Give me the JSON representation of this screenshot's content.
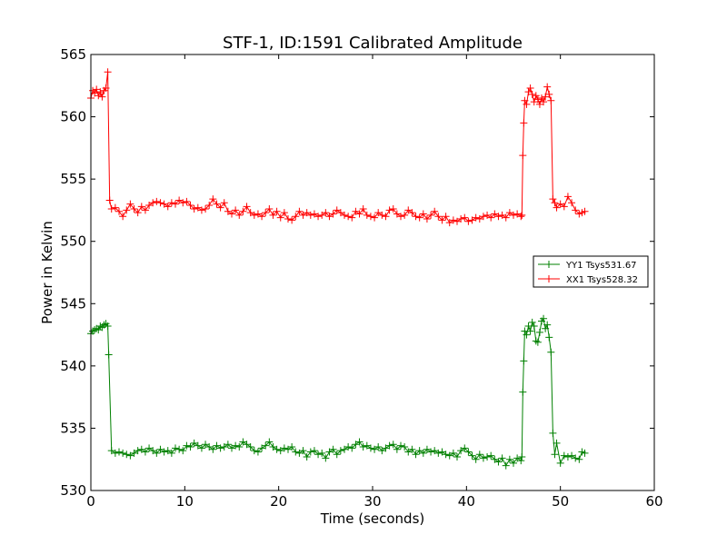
{
  "chart_data": {
    "type": "line",
    "title": "STF-1, ID:1591 Calibrated Amplitude",
    "xlabel": "Time (seconds)",
    "ylabel": "Power in Kelvin",
    "xlim": [
      0,
      60
    ],
    "ylim": [
      530,
      565
    ],
    "xticks": [
      0,
      10,
      20,
      30,
      40,
      50,
      60
    ],
    "yticks": [
      530,
      535,
      540,
      545,
      550,
      555,
      560,
      565
    ],
    "xtick_labels": [
      "0",
      "10",
      "20",
      "30",
      "40",
      "50",
      "60"
    ],
    "ytick_labels": [
      "530",
      "535",
      "540",
      "545",
      "550",
      "555",
      "560",
      "565"
    ],
    "grid": false,
    "legend_position": "center-right",
    "marker": "+",
    "series": [
      {
        "name": "YY1 Tsys531.67",
        "color": "#008000",
        "x": [
          0.0,
          0.2,
          0.4,
          0.6,
          0.8,
          1.0,
          1.2,
          1.4,
          1.6,
          1.8,
          1.9,
          2.2,
          2.6,
          3.0,
          3.4,
          3.8,
          4.2,
          4.6,
          5.0,
          5.4,
          5.8,
          6.2,
          6.6,
          7.0,
          7.4,
          7.8,
          8.2,
          8.6,
          9.0,
          9.4,
          9.8,
          10.2,
          10.6,
          11.0,
          11.4,
          11.8,
          12.2,
          12.6,
          13.0,
          13.4,
          13.8,
          14.2,
          14.6,
          15.0,
          15.4,
          15.8,
          16.2,
          16.6,
          17.0,
          17.4,
          17.8,
          18.2,
          18.6,
          19.0,
          19.4,
          19.8,
          20.2,
          20.6,
          21.0,
          21.4,
          21.8,
          22.2,
          22.6,
          23.0,
          23.4,
          23.8,
          24.2,
          24.6,
          25.0,
          25.4,
          25.8,
          26.2,
          26.6,
          27.0,
          27.4,
          27.8,
          28.2,
          28.6,
          29.0,
          29.4,
          29.8,
          30.2,
          30.6,
          31.0,
          31.4,
          31.8,
          32.2,
          32.6,
          33.0,
          33.4,
          33.8,
          34.2,
          34.6,
          35.0,
          35.4,
          35.8,
          36.2,
          36.6,
          37.0,
          37.4,
          37.8,
          38.2,
          38.6,
          39.0,
          39.4,
          39.8,
          40.2,
          40.6,
          41.0,
          41.4,
          41.8,
          42.2,
          42.6,
          43.0,
          43.4,
          43.8,
          44.2,
          44.6,
          45.0,
          45.4,
          45.8,
          45.9,
          46.0,
          46.1,
          46.2,
          46.4,
          46.6,
          46.8,
          47.0,
          47.2,
          47.4,
          47.6,
          47.8,
          48.0,
          48.2,
          48.4,
          48.6,
          48.8,
          49.0,
          49.2,
          49.4,
          49.6,
          50.0,
          50.4,
          50.8,
          51.2,
          51.6,
          52.0,
          52.3,
          52.6
        ],
        "values": [
          542.6,
          542.8,
          542.9,
          543.0,
          542.9,
          543.2,
          543.1,
          543.3,
          543.4,
          543.2,
          540.9,
          533.2,
          533.0,
          533.1,
          533.0,
          532.9,
          532.8,
          533.0,
          533.2,
          533.3,
          533.1,
          533.4,
          533.2,
          533.0,
          533.3,
          533.1,
          533.2,
          533.0,
          533.4,
          533.3,
          533.2,
          533.6,
          533.5,
          533.8,
          533.6,
          533.4,
          533.7,
          533.5,
          533.3,
          533.6,
          533.4,
          533.5,
          533.7,
          533.4,
          533.6,
          533.5,
          533.9,
          533.7,
          533.5,
          533.2,
          533.1,
          533.4,
          533.6,
          533.9,
          533.5,
          533.3,
          533.2,
          533.4,
          533.3,
          533.5,
          533.1,
          533.0,
          533.2,
          532.7,
          533.1,
          533.2,
          532.9,
          533.0,
          532.6,
          533.1,
          533.3,
          532.9,
          533.2,
          533.3,
          533.5,
          533.4,
          533.7,
          533.9,
          533.5,
          533.6,
          533.4,
          533.3,
          533.5,
          533.2,
          533.4,
          533.6,
          533.7,
          533.3,
          533.6,
          533.5,
          533.1,
          533.3,
          532.9,
          533.2,
          533.0,
          533.3,
          533.1,
          533.2,
          533.0,
          533.1,
          532.9,
          532.8,
          533.0,
          532.7,
          533.2,
          533.4,
          533.1,
          532.8,
          532.5,
          532.9,
          532.6,
          532.7,
          532.8,
          532.5,
          532.3,
          532.6,
          532.0,
          532.5,
          532.2,
          532.6,
          532.4,
          532.7,
          537.9,
          540.4,
          542.8,
          542.5,
          543.2,
          542.8,
          543.5,
          543.2,
          542.0,
          541.9,
          542.7,
          543.6,
          543.8,
          543.0,
          543.3,
          542.3,
          541.1,
          534.6,
          532.9,
          533.8,
          532.2,
          532.8,
          532.7,
          532.8,
          532.6,
          532.5,
          533.1,
          533.0
        ]
      },
      {
        "name": "XX1 Tsys528.32",
        "color": "#ff0000",
        "x": [
          0.0,
          0.2,
          0.4,
          0.6,
          0.8,
          1.0,
          1.2,
          1.4,
          1.6,
          1.8,
          2.0,
          2.2,
          2.6,
          3.0,
          3.4,
          3.8,
          4.2,
          4.6,
          5.0,
          5.4,
          5.8,
          6.2,
          6.6,
          7.0,
          7.4,
          7.8,
          8.2,
          8.6,
          9.0,
          9.4,
          9.8,
          10.2,
          10.6,
          11.0,
          11.4,
          11.8,
          12.2,
          12.6,
          13.0,
          13.4,
          13.8,
          14.2,
          14.6,
          15.0,
          15.4,
          15.8,
          16.2,
          16.6,
          17.0,
          17.4,
          17.8,
          18.2,
          18.6,
          19.0,
          19.4,
          19.8,
          20.2,
          20.6,
          21.0,
          21.4,
          21.8,
          22.2,
          22.6,
          23.0,
          23.4,
          23.8,
          24.2,
          24.6,
          25.0,
          25.4,
          25.8,
          26.2,
          26.6,
          27.0,
          27.4,
          27.8,
          28.2,
          28.6,
          29.0,
          29.4,
          29.8,
          30.2,
          30.6,
          31.0,
          31.4,
          31.8,
          32.2,
          32.6,
          33.0,
          33.4,
          33.8,
          34.2,
          34.6,
          35.0,
          35.4,
          35.8,
          36.2,
          36.6,
          37.0,
          37.4,
          37.8,
          38.2,
          38.6,
          39.0,
          39.4,
          39.8,
          40.2,
          40.6,
          41.0,
          41.4,
          41.8,
          42.2,
          42.6,
          43.0,
          43.4,
          43.8,
          44.2,
          44.6,
          45.0,
          45.4,
          45.8,
          45.9,
          46.0,
          46.1,
          46.2,
          46.4,
          46.6,
          46.8,
          47.0,
          47.2,
          47.4,
          47.6,
          47.8,
          48.0,
          48.2,
          48.4,
          48.6,
          48.8,
          49.0,
          49.2,
          49.4,
          49.6,
          50.0,
          50.4,
          50.8,
          51.2,
          51.6,
          52.0,
          52.3,
          52.6
        ],
        "values": [
          561.5,
          562.1,
          561.9,
          562.2,
          561.7,
          562.0,
          561.6,
          562.1,
          562.3,
          563.6,
          553.3,
          552.6,
          552.7,
          552.4,
          552.0,
          552.5,
          553.0,
          552.6,
          552.3,
          552.8,
          552.5,
          552.9,
          553.1,
          553.2,
          553.1,
          553.0,
          552.8,
          553.1,
          553.0,
          553.3,
          553.1,
          553.2,
          552.9,
          552.6,
          552.7,
          552.5,
          552.6,
          552.9,
          553.4,
          553.0,
          552.7,
          553.1,
          552.4,
          552.2,
          552.5,
          552.1,
          552.4,
          552.8,
          552.3,
          552.1,
          552.2,
          552.0,
          552.3,
          552.6,
          552.1,
          552.4,
          551.9,
          552.3,
          551.8,
          551.7,
          552.0,
          552.4,
          552.1,
          552.3,
          552.1,
          552.2,
          552.0,
          552.1,
          552.3,
          552.0,
          552.2,
          552.5,
          552.3,
          552.1,
          552.0,
          551.9,
          552.4,
          552.2,
          552.6,
          552.1,
          552.0,
          551.9,
          552.3,
          552.1,
          552.0,
          552.5,
          552.6,
          552.2,
          552.0,
          552.1,
          552.5,
          552.3,
          552.0,
          551.9,
          552.2,
          551.8,
          552.1,
          552.4,
          552.0,
          551.7,
          552.0,
          551.5,
          551.7,
          551.6,
          551.8,
          551.9,
          551.6,
          551.7,
          551.9,
          551.8,
          552.0,
          552.1,
          551.9,
          552.2,
          552.0,
          552.1,
          551.9,
          552.3,
          552.1,
          552.2,
          552.0,
          552.1,
          556.9,
          559.5,
          561.3,
          561.0,
          562.0,
          562.3,
          561.8,
          561.2,
          561.7,
          561.4,
          561.0,
          561.5,
          561.2,
          561.6,
          562.4,
          561.8,
          561.3,
          553.4,
          553.1,
          552.7,
          553.0,
          552.8,
          553.6,
          553.1,
          552.5,
          552.2,
          552.3,
          552.4
        ]
      }
    ]
  }
}
